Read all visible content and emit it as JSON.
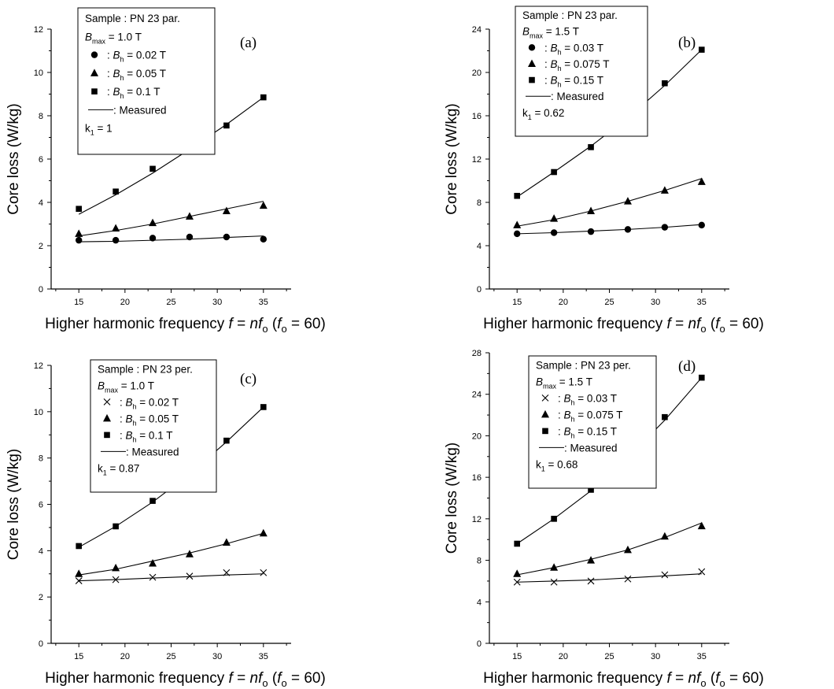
{
  "figure_text": {
    "xlabel": {
      "pre": "Higher harmonic frequency ",
      "f": "f",
      "eq": " = ",
      "n": "n",
      "f2": "f",
      "sub": "o",
      "paren_open": " (",
      "f3": "f",
      "sub2": "o",
      "tail": " = 60)"
    },
    "ylabel": "Core loss  (W/kg)",
    "b_symbol": "B",
    "bmax_sub": "max",
    "bh_sub": "h",
    "k_symbol": "k",
    "k_sub": "1",
    "measured_prefix": ": "
  },
  "chart_data": [
    {
      "id": "a",
      "type": "line",
      "panel_label": "(a)",
      "xlim": [
        12,
        38
      ],
      "ylim": [
        0,
        12
      ],
      "xticks": [
        15,
        20,
        25,
        30,
        35
      ],
      "yticks": [
        0,
        2,
        4,
        6,
        8,
        10,
        12
      ],
      "legend": {
        "sample": "Sample : PN 23 par.",
        "bmax": " = 1.0 T",
        "measured_label": "Measured",
        "k1": " = 1"
      },
      "series": [
        {
          "name": " = 0.02 T",
          "marker": "circle",
          "x": [
            15,
            19,
            23,
            27,
            31,
            35
          ],
          "y": [
            2.25,
            2.25,
            2.35,
            2.4,
            2.4,
            2.3
          ],
          "measured": [
            2.18,
            2.2,
            2.25,
            2.3,
            2.38,
            2.45
          ]
        },
        {
          "name": " = 0.05 T",
          "marker": "triangle",
          "x": [
            15,
            19,
            23,
            27,
            31,
            35
          ],
          "y": [
            2.55,
            2.8,
            3.05,
            3.35,
            3.6,
            3.85
          ],
          "measured": [
            2.45,
            2.7,
            3.0,
            3.35,
            3.7,
            4.05
          ]
        },
        {
          "name": " = 0.1 T",
          "marker": "square",
          "x": [
            15,
            19,
            23,
            27,
            31,
            35
          ],
          "y": [
            3.7,
            4.5,
            5.55,
            6.45,
            7.55,
            8.85
          ],
          "measured": [
            3.45,
            4.35,
            5.35,
            6.45,
            7.6,
            8.85
          ]
        }
      ]
    },
    {
      "id": "b",
      "type": "line",
      "panel_label": "(b)",
      "xlim": [
        12,
        38
      ],
      "ylim": [
        0,
        24
      ],
      "xticks": [
        15,
        20,
        25,
        30,
        35
      ],
      "yticks": [
        0,
        4,
        8,
        12,
        16,
        20,
        24
      ],
      "legend": {
        "sample": "Sample : PN 23 par.",
        "bmax": " = 1.5 T",
        "measured_label": "Measured",
        "k1": " = 0.62"
      },
      "series": [
        {
          "name": " = 0.03 T",
          "marker": "circle",
          "x": [
            15,
            19,
            23,
            27,
            31,
            35
          ],
          "y": [
            5.1,
            5.2,
            5.3,
            5.5,
            5.7,
            5.9
          ],
          "measured": [
            5.1,
            5.2,
            5.35,
            5.5,
            5.7,
            5.95
          ]
        },
        {
          "name": " = 0.075 T",
          "marker": "triangle",
          "x": [
            15,
            19,
            23,
            27,
            31,
            35
          ],
          "y": [
            5.9,
            6.5,
            7.2,
            8.1,
            9.1,
            9.9
          ],
          "measured": [
            5.8,
            6.4,
            7.2,
            8.1,
            9.1,
            10.2
          ]
        },
        {
          "name": " = 0.15 T",
          "marker": "square",
          "x": [
            15,
            19,
            23,
            27,
            31,
            35
          ],
          "y": [
            8.6,
            10.8,
            13.1,
            15.9,
            19.0,
            22.1
          ],
          "measured": [
            8.5,
            10.8,
            13.2,
            15.8,
            18.8,
            22.1
          ]
        }
      ]
    },
    {
      "id": "c",
      "type": "line",
      "panel_label": "(c)",
      "xlim": [
        12,
        38
      ],
      "ylim": [
        0,
        12
      ],
      "xticks": [
        15,
        20,
        25,
        30,
        35
      ],
      "yticks": [
        0,
        2,
        4,
        6,
        8,
        10,
        12
      ],
      "legend": {
        "sample": "Sample : PN 23 per.",
        "bmax": " = 1.0 T",
        "measured_label": "Measured",
        "k1": " = 0.87"
      },
      "series": [
        {
          "name": " = 0.02 T",
          "marker": "x",
          "x": [
            15,
            19,
            23,
            27,
            31,
            35
          ],
          "y": [
            2.7,
            2.75,
            2.85,
            2.9,
            3.05,
            3.05
          ],
          "measured": [
            2.7,
            2.75,
            2.82,
            2.88,
            2.95,
            3.0
          ]
        },
        {
          "name": " = 0.05 T",
          "marker": "triangle",
          "x": [
            15,
            19,
            23,
            27,
            31,
            35
          ],
          "y": [
            3.0,
            3.25,
            3.45,
            3.85,
            4.35,
            4.75
          ],
          "measured": [
            2.95,
            3.2,
            3.55,
            3.9,
            4.3,
            4.75
          ]
        },
        {
          "name": " = 0.1 T",
          "marker": "square",
          "x": [
            15,
            19,
            23,
            27,
            31,
            35
          ],
          "y": [
            4.2,
            5.05,
            6.15,
            7.3,
            8.75,
            10.2
          ],
          "measured": [
            4.15,
            5.05,
            6.1,
            7.3,
            8.7,
            10.2
          ]
        }
      ]
    },
    {
      "id": "d",
      "type": "line",
      "panel_label": "(d)",
      "xlim": [
        12,
        38
      ],
      "ylim": [
        0,
        28
      ],
      "xticks": [
        15,
        20,
        25,
        30,
        35
      ],
      "yticks": [
        0,
        4,
        8,
        12,
        16,
        20,
        24,
        28
      ],
      "legend": {
        "sample": "Sample : PN 23 per.",
        "bmax": " = 1.5 T",
        "measured_label": "Measured",
        "k1": " = 0.68"
      },
      "series": [
        {
          "name": " = 0.03 T",
          "marker": "x",
          "x": [
            15,
            19,
            23,
            27,
            31,
            35
          ],
          "y": [
            5.9,
            5.9,
            6.0,
            6.2,
            6.6,
            6.9
          ],
          "measured": [
            5.9,
            6.0,
            6.1,
            6.3,
            6.5,
            6.7
          ]
        },
        {
          "name": " = 0.075 T",
          "marker": "triangle",
          "x": [
            15,
            19,
            23,
            27,
            31,
            35
          ],
          "y": [
            6.7,
            7.3,
            8.0,
            9.0,
            10.3,
            11.3
          ],
          "measured": [
            6.6,
            7.3,
            8.1,
            9.0,
            10.2,
            11.6
          ]
        },
        {
          "name": " = 0.15 T",
          "marker": "square",
          "x": [
            15,
            19,
            23,
            27,
            31,
            35
          ],
          "y": [
            9.6,
            12.0,
            14.8,
            18.0,
            21.8,
            25.6
          ],
          "measured": [
            9.6,
            12.0,
            14.7,
            17.9,
            21.5,
            25.6
          ]
        }
      ]
    }
  ]
}
